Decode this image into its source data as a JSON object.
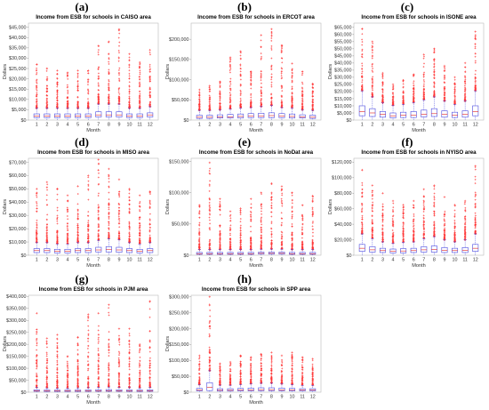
{
  "chart_data": [
    {
      "type": "box",
      "letter": "(a)",
      "title": "Income from ESB for schools in CAISO area",
      "xlabel": "Month",
      "ylabel": "Dollars",
      "categories": [
        "1",
        "2",
        "3",
        "4",
        "5",
        "6",
        "7",
        "8",
        "9",
        "10",
        "11",
        "12"
      ],
      "ylim": [
        0,
        47000
      ],
      "yticks": [
        0,
        5000,
        10000,
        15000,
        20000,
        25000,
        30000,
        35000,
        40000,
        45000
      ],
      "ytick_labels": [
        "$0",
        "$5,000",
        "$10,000",
        "$15,000",
        "$20,000",
        "$25,000",
        "$30,000",
        "$35,000",
        "$40,000",
        "$45,000"
      ],
      "median": [
        2000,
        2000,
        2000,
        2000,
        2000,
        2000,
        2500,
        2500,
        2500,
        2000,
        2000,
        2500
      ],
      "q1": [
        1200,
        1200,
        1200,
        1200,
        1200,
        1200,
        1500,
        1500,
        1500,
        1200,
        1200,
        1500
      ],
      "q3": [
        3000,
        3000,
        3000,
        3000,
        3000,
        3000,
        4000,
        4000,
        4000,
        3000,
        3000,
        3500
      ],
      "outlier_max": [
        27000,
        25000,
        24000,
        23000,
        24000,
        24000,
        36000,
        38000,
        44000,
        32000,
        28000,
        34000
      ]
    },
    {
      "type": "box",
      "letter": "(b)",
      "title": "Income from ESB for schools in ERCOT area",
      "xlabel": "Month",
      "ylabel": "Dollars",
      "categories": [
        "1",
        "2",
        "3",
        "4",
        "5",
        "6",
        "7",
        "8",
        "9",
        "10",
        "11",
        "12"
      ],
      "ylim": [
        0,
        240000
      ],
      "yticks": [
        0,
        50000,
        100000,
        150000,
        200000
      ],
      "ytick_labels": [
        "$0",
        "$50,000",
        "$100,000",
        "$150,000",
        "$200,000"
      ],
      "median": [
        7000,
        7000,
        8000,
        8000,
        9000,
        10000,
        10000,
        11000,
        10000,
        9000,
        8000,
        7000
      ],
      "q1": [
        4000,
        4000,
        5000,
        5000,
        5000,
        6000,
        6000,
        6000,
        6000,
        5000,
        5000,
        4000
      ],
      "q3": [
        12000,
        12000,
        13000,
        14000,
        15000,
        16000,
        17000,
        18000,
        16000,
        15000,
        13000,
        12000
      ],
      "outlier_max": [
        75000,
        85000,
        95000,
        155000,
        170000,
        120000,
        210000,
        225000,
        185000,
        140000,
        120000,
        90000
      ]
    },
    {
      "type": "box",
      "letter": "(c)",
      "title": "Income from ESB for schools in ISONE area",
      "xlabel": "Month",
      "ylabel": "Dollars",
      "categories": [
        "1",
        "2",
        "3",
        "4",
        "5",
        "6",
        "7",
        "8",
        "9",
        "10",
        "11",
        "12"
      ],
      "ylim": [
        0,
        68000
      ],
      "yticks": [
        0,
        5000,
        10000,
        15000,
        20000,
        25000,
        30000,
        35000,
        40000,
        45000,
        50000,
        55000,
        60000,
        65000
      ],
      "ytick_labels": [
        "$0",
        "$5,000",
        "$10,000",
        "$15,000",
        "$20,000",
        "$25,000",
        "$30,000",
        "$35,000",
        "$40,000",
        "$45,000",
        "$50,000",
        "$55,000",
        "$60,000",
        "$65,000"
      ],
      "median": [
        6000,
        5000,
        4000,
        3000,
        3500,
        3500,
        4000,
        4500,
        4000,
        3500,
        4000,
        6000
      ],
      "q1": [
        3000,
        2500,
        2000,
        1500,
        1800,
        1800,
        2200,
        2500,
        2000,
        1800,
        2000,
        3000
      ],
      "q3": [
        10000,
        8000,
        6000,
        5000,
        5500,
        6000,
        7000,
        8000,
        6500,
        5500,
        6500,
        10000
      ],
      "outlier_max": [
        64000,
        55000,
        33000,
        25000,
        28000,
        32000,
        46000,
        50000,
        38000,
        30000,
        40000,
        62000
      ]
    },
    {
      "type": "box",
      "letter": "(d)",
      "title": "Income from ESB for schools in MISO area",
      "xlabel": "Month",
      "ylabel": "Dollars",
      "categories": [
        "1",
        "2",
        "3",
        "4",
        "5",
        "6",
        "7",
        "8",
        "9",
        "10",
        "11",
        "12"
      ],
      "ylim": [
        0,
        73000
      ],
      "yticks": [
        0,
        10000,
        20000,
        30000,
        40000,
        50000,
        60000,
        70000
      ],
      "ytick_labels": [
        "$0",
        "$10,000",
        "$20,000",
        "$30,000",
        "$40,000",
        "$50,000",
        "$60,000",
        "$70,000"
      ],
      "median": [
        3500,
        3500,
        3000,
        3000,
        3500,
        3500,
        4000,
        4500,
        4000,
        3500,
        3000,
        3500
      ],
      "q1": [
        2000,
        2000,
        1800,
        1800,
        2000,
        2000,
        2500,
        2500,
        2200,
        2000,
        1800,
        2000
      ],
      "q3": [
        5000,
        5000,
        4500,
        4500,
        5000,
        5000,
        6000,
        6500,
        6000,
        5000,
        4500,
        5000
      ],
      "outlier_max": [
        50000,
        55000,
        50000,
        45000,
        52000,
        60000,
        72000,
        65000,
        57000,
        50000,
        45000,
        48000
      ]
    },
    {
      "type": "box",
      "letter": "(e)",
      "title": "Income from ESB for schools in NoDat area",
      "xlabel": "Month",
      "ylabel": "Dollars",
      "categories": [
        "1",
        "2",
        "3",
        "4",
        "5",
        "6",
        "7",
        "8",
        "9",
        "10",
        "11",
        "12"
      ],
      "ylim": [
        0,
        155000
      ],
      "yticks": [
        0,
        50000,
        100000,
        150000
      ],
      "ytick_labels": [
        "$0",
        "$50,000",
        "$100,000",
        "$150,000"
      ],
      "median": [
        2500,
        2500,
        2500,
        2500,
        2500,
        2500,
        3000,
        3000,
        3000,
        2500,
        2500,
        2500
      ],
      "q1": [
        1500,
        1500,
        1500,
        1500,
        1500,
        1500,
        1800,
        1800,
        1800,
        1500,
        1500,
        1500
      ],
      "q3": [
        4500,
        4500,
        4500,
        4500,
        4500,
        4500,
        5000,
        5000,
        5000,
        4500,
        4500,
        4500
      ],
      "outlier_max": [
        80000,
        148000,
        90000,
        70000,
        75000,
        90000,
        100000,
        115000,
        110000,
        100000,
        80000,
        95000
      ]
    },
    {
      "type": "box",
      "letter": "(f)",
      "title": "Income from ESB for schools in NYISO area",
      "xlabel": "Month",
      "ylabel": "Dollars",
      "categories": [
        "1",
        "2",
        "3",
        "4",
        "5",
        "6",
        "7",
        "8",
        "9",
        "10",
        "11",
        "12"
      ],
      "ylim": [
        0,
        125000
      ],
      "yticks": [
        0,
        20000,
        40000,
        60000,
        80000,
        100000,
        120000
      ],
      "ytick_labels": [
        "$0",
        "$20,000",
        "$40,000",
        "$60,000",
        "$80,000",
        "$100,000",
        "$120,000"
      ],
      "median": [
        9000,
        7000,
        6000,
        5000,
        5500,
        6000,
        7000,
        7500,
        6500,
        6000,
        6500,
        9000
      ],
      "q1": [
        5000,
        4000,
        3500,
        3000,
        3000,
        3500,
        4000,
        4000,
        3500,
        3500,
        3500,
        5000
      ],
      "q3": [
        14000,
        11000,
        9000,
        8000,
        8500,
        9000,
        11000,
        12000,
        10000,
        9000,
        10000,
        14000
      ],
      "outlier_max": [
        110000,
        90000,
        80000,
        70000,
        65000,
        70000,
        85000,
        90000,
        75000,
        65000,
        70000,
        115000
      ]
    },
    {
      "type": "box",
      "letter": "(g)",
      "title": "Income from ESB for schools in PJM area",
      "xlabel": "Month",
      "ylabel": "Dollars",
      "categories": [
        "1",
        "2",
        "3",
        "4",
        "5",
        "6",
        "7",
        "8",
        "9",
        "10",
        "11",
        "12"
      ],
      "ylim": [
        0,
        405000
      ],
      "yticks": [
        0,
        50000,
        100000,
        150000,
        200000,
        250000,
        300000,
        350000,
        400000
      ],
      "ytick_labels": [
        "$0",
        "$50,000",
        "$100,000",
        "$150,000",
        "$200,000",
        "$250,000",
        "$300,000",
        "$350,000",
        "$400,000"
      ],
      "median": [
        6000,
        5000,
        5000,
        5000,
        5000,
        5500,
        6000,
        6500,
        6000,
        5500,
        5000,
        6000
      ],
      "q1": [
        3500,
        3000,
        3000,
        3000,
        3000,
        3200,
        3500,
        3800,
        3500,
        3200,
        3000,
        3500
      ],
      "q3": [
        10000,
        9000,
        8500,
        8500,
        9000,
        9500,
        10500,
        11000,
        10000,
        9500,
        9000,
        10000
      ],
      "outlier_max": [
        330000,
        225000,
        240000,
        150000,
        230000,
        325000,
        330000,
        365000,
        265000,
        265000,
        200000,
        380000
      ]
    },
    {
      "type": "box",
      "letter": "(h)",
      "title": "Income from ESB for schools in SPP area",
      "xlabel": "Month",
      "ylabel": "Dollars",
      "categories": [
        "1",
        "2",
        "3",
        "4",
        "5",
        "6",
        "7",
        "8",
        "9",
        "10",
        "11",
        "12"
      ],
      "ylim": [
        0,
        305000
      ],
      "yticks": [
        0,
        50000,
        100000,
        150000,
        200000,
        250000,
        300000
      ],
      "ytick_labels": [
        "$0",
        "$50,000",
        "$100,000",
        "$150,000",
        "$200,000",
        "$250,000",
        "$300,000"
      ],
      "median": [
        7000,
        15000,
        6000,
        6000,
        6500,
        7000,
        8000,
        8000,
        7500,
        7000,
        6500,
        6500
      ],
      "q1": [
        4000,
        5000,
        3500,
        3500,
        3800,
        4000,
        4500,
        4500,
        4200,
        4000,
        3800,
        3800
      ],
      "q3": [
        12000,
        30000,
        11000,
        11000,
        12000,
        13000,
        14000,
        14000,
        13000,
        12000,
        11000,
        11000
      ],
      "outlier_max": [
        115000,
        300000,
        90000,
        95000,
        115000,
        110000,
        120000,
        125000,
        115000,
        125000,
        110000,
        105000
      ]
    }
  ]
}
